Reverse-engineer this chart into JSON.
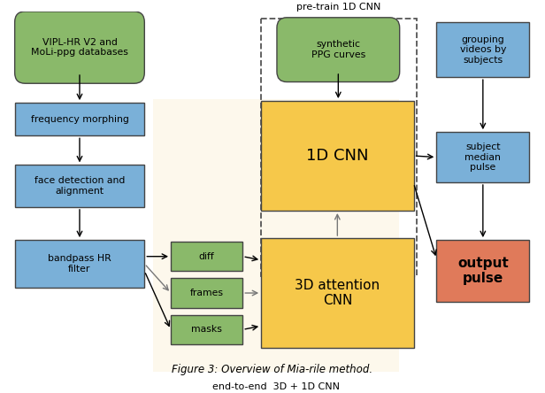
{
  "title": "Figure 3: Overview of Mia-rile method.",
  "background_color": "#ffffff",
  "green_color": "#8ab96a",
  "blue_color": "#7ab0d8",
  "orange_color": "#f6c84a",
  "salmon_color": "#e07a5a",
  "cream_color": "#fdf8ec",
  "pre_train_label": "pre-train 1D CNN",
  "end_to_end_label": "end-to-end  3D + 1D CNN"
}
